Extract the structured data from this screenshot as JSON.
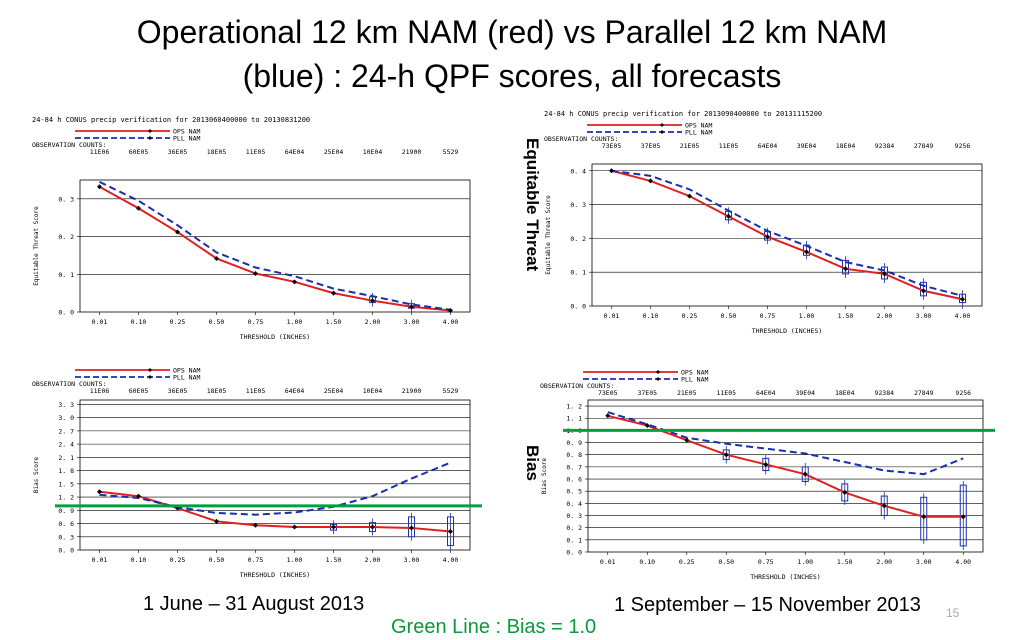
{
  "slide": {
    "title_line1": "Operational 12 km NAM (red) vs Parallel 12 km NAM",
    "title_line2": "(blue) : 24-h QPF scores, all forecasts",
    "row_label_top": "Equitable Threat",
    "row_label_bottom": "Bias",
    "caption_left": "1 June – 31 August 2013",
    "caption_right": "1 September – 15 November 2013",
    "footnote": "Green Line : Bias = 1.0",
    "page_number": "15"
  },
  "colors": {
    "ops": "#e02020",
    "pll": "#1a2fb0",
    "ref": "#00a040"
  },
  "chart_data": [
    {
      "type": "line",
      "title": "24-84 h CONUS precip verification for 2013060400000 to 20130831200",
      "xlabel": "THRESHOLD (INCHES)",
      "ylabel": "Equitable Threat Score",
      "categories": [
        "0.01",
        "0.10",
        "0.25",
        "0.50",
        "0.75",
        "1.00",
        "1.50",
        "2.00",
        "3.00",
        "4.00"
      ],
      "ylim": [
        0,
        0.35
      ],
      "yticks": [
        0,
        0.1,
        0.2,
        0.3
      ],
      "ytick_labels": [
        "0. 0",
        "0. 1",
        "0. 2",
        "0. 3"
      ],
      "obs_label": "OBSERVATION COUNTS:",
      "obs_counts": [
        "11E06",
        "60E05",
        "36E05",
        "18E05",
        "11E05",
        "64E04",
        "25E04",
        "10E04",
        "21900",
        "5529"
      ],
      "legend": [
        "OPS NAM",
        "PLL NAM"
      ],
      "series": [
        {
          "name": "OPS NAM",
          "values": [
            0.332,
            0.275,
            0.212,
            0.142,
            0.102,
            0.08,
            0.05,
            0.03,
            0.014,
            0.004
          ]
        },
        {
          "name": "PLL NAM",
          "values": [
            0.345,
            0.295,
            0.23,
            0.158,
            0.118,
            0.095,
            0.062,
            0.042,
            0.02,
            0.006
          ]
        }
      ],
      "boxes": [
        null,
        null,
        null,
        null,
        null,
        null,
        null,
        [
          0.025,
          0.04
        ],
        [
          0.01,
          0.022
        ],
        null
      ]
    },
    {
      "type": "line",
      "title": "24-84 h CONUS precip verification for 2013090400000 to 20131115200",
      "xlabel": "THRESHOLD (INCHES)",
      "ylabel": "Equitable Threat Score",
      "categories": [
        "0.01",
        "0.10",
        "0.25",
        "0.50",
        "0.75",
        "1.00",
        "1.50",
        "2.00",
        "3.00",
        "4.00"
      ],
      "ylim": [
        0,
        0.42
      ],
      "yticks": [
        0,
        0.1,
        0.2,
        0.3,
        0.4
      ],
      "ytick_labels": [
        "0. 0",
        "0. 1",
        "0. 2",
        "0. 3",
        "0. 4"
      ],
      "obs_label": "OBSERVATION COUNTS:",
      "obs_counts": [
        "73E05",
        "37E05",
        "21E05",
        "11E05",
        "64E04",
        "39E04",
        "18E04",
        "92384",
        "27849",
        "9256"
      ],
      "legend": [
        "OPS NAM",
        "PLL NAM"
      ],
      "series": [
        {
          "name": "OPS NAM",
          "values": [
            0.4,
            0.37,
            0.325,
            0.265,
            0.205,
            0.16,
            0.11,
            0.095,
            0.045,
            0.02
          ]
        },
        {
          "name": "PLL NAM",
          "values": [
            0.4,
            0.385,
            0.345,
            0.282,
            0.222,
            0.178,
            0.13,
            0.105,
            0.06,
            0.03
          ]
        }
      ],
      "boxes": [
        null,
        null,
        null,
        [
          0.255,
          0.28
        ],
        [
          0.195,
          0.22
        ],
        [
          0.15,
          0.18
        ],
        [
          0.095,
          0.135
        ],
        [
          0.08,
          0.115
        ],
        [
          0.03,
          0.07
        ],
        [
          0.01,
          0.035
        ]
      ]
    },
    {
      "type": "line",
      "title": "",
      "xlabel": "THRESHOLD (INCHES)",
      "ylabel": "Bias Score",
      "categories": [
        "0.01",
        "0.10",
        "0.25",
        "0.50",
        "0.75",
        "1.00",
        "1.50",
        "2.00",
        "3.00",
        "4.00"
      ],
      "ylim": [
        0,
        3.4
      ],
      "yticks": [
        0,
        0.3,
        0.6,
        0.9,
        1.2,
        1.5,
        1.8,
        2.1,
        2.4,
        2.7,
        3.0,
        3.3
      ],
      "ytick_labels": [
        "0. 0",
        "0. 3",
        "0. 6",
        "0. 9",
        "1. 2",
        "1. 5",
        "1. 8",
        "2. 1",
        "2. 4",
        "2. 7",
        "3. 0",
        "3. 3"
      ],
      "obs_label": "OBSERVATION COUNTS:",
      "obs_counts": [
        "11E06",
        "60E05",
        "36E05",
        "18E05",
        "11E05",
        "64E04",
        "25E04",
        "10E04",
        "21900",
        "5529"
      ],
      "legend": [
        "OPS NAM",
        "PLL NAM"
      ],
      "series": [
        {
          "name": "OPS NAM",
          "values": [
            1.32,
            1.22,
            0.95,
            0.65,
            0.56,
            0.52,
            0.52,
            0.52,
            0.5,
            0.42
          ]
        },
        {
          "name": "PLL NAM",
          "values": [
            1.25,
            1.18,
            0.97,
            0.84,
            0.8,
            0.85,
            0.98,
            1.22,
            1.62,
            1.98
          ]
        }
      ],
      "boxes": [
        null,
        null,
        null,
        null,
        null,
        null,
        [
          0.45,
          0.58
        ],
        [
          0.42,
          0.62
        ],
        [
          0.3,
          0.75
        ],
        [
          0.1,
          0.75
        ]
      ],
      "reference_line": 1.0
    },
    {
      "type": "line",
      "title": "",
      "xlabel": "THRESHOLD (INCHES)",
      "ylabel": "Bias Score",
      "categories": [
        "0.01",
        "0.10",
        "0.25",
        "0.50",
        "0.75",
        "1.00",
        "1.50",
        "2.00",
        "3.00",
        "4.00"
      ],
      "ylim": [
        0,
        1.25
      ],
      "yticks": [
        0,
        0.1,
        0.2,
        0.3,
        0.4,
        0.5,
        0.6,
        0.7,
        0.8,
        0.9,
        1.0,
        1.1,
        1.2
      ],
      "ytick_labels": [
        "0. 0",
        "0. 1",
        "0. 2",
        "0. 3",
        "0. 4",
        "0. 5",
        "0. 6",
        "0. 7",
        "0. 8",
        "0. 9",
        "1. 0",
        "1. 1",
        "1. 2"
      ],
      "obs_label": "OBSERVATION COUNTS:",
      "obs_counts": [
        "73E05",
        "37E05",
        "21E05",
        "11E05",
        "64E04",
        "39E04",
        "18E04",
        "92384",
        "27849",
        "9256"
      ],
      "legend": [
        "OPS NAM",
        "PLL NAM"
      ],
      "series": [
        {
          "name": "OPS NAM",
          "values": [
            1.12,
            1.04,
            0.92,
            0.8,
            0.72,
            0.64,
            0.49,
            0.38,
            0.29,
            0.29
          ]
        },
        {
          "name": "PLL NAM",
          "values": [
            1.15,
            1.05,
            0.94,
            0.89,
            0.85,
            0.81,
            0.74,
            0.67,
            0.64,
            0.77
          ]
        }
      ],
      "boxes": [
        null,
        null,
        null,
        [
          0.76,
          0.84
        ],
        [
          0.67,
          0.77
        ],
        [
          0.58,
          0.7
        ],
        [
          0.42,
          0.56
        ],
        [
          0.3,
          0.46
        ],
        [
          0.1,
          0.45
        ],
        [
          0.05,
          0.55
        ]
      ],
      "reference_line": 1.0
    }
  ]
}
